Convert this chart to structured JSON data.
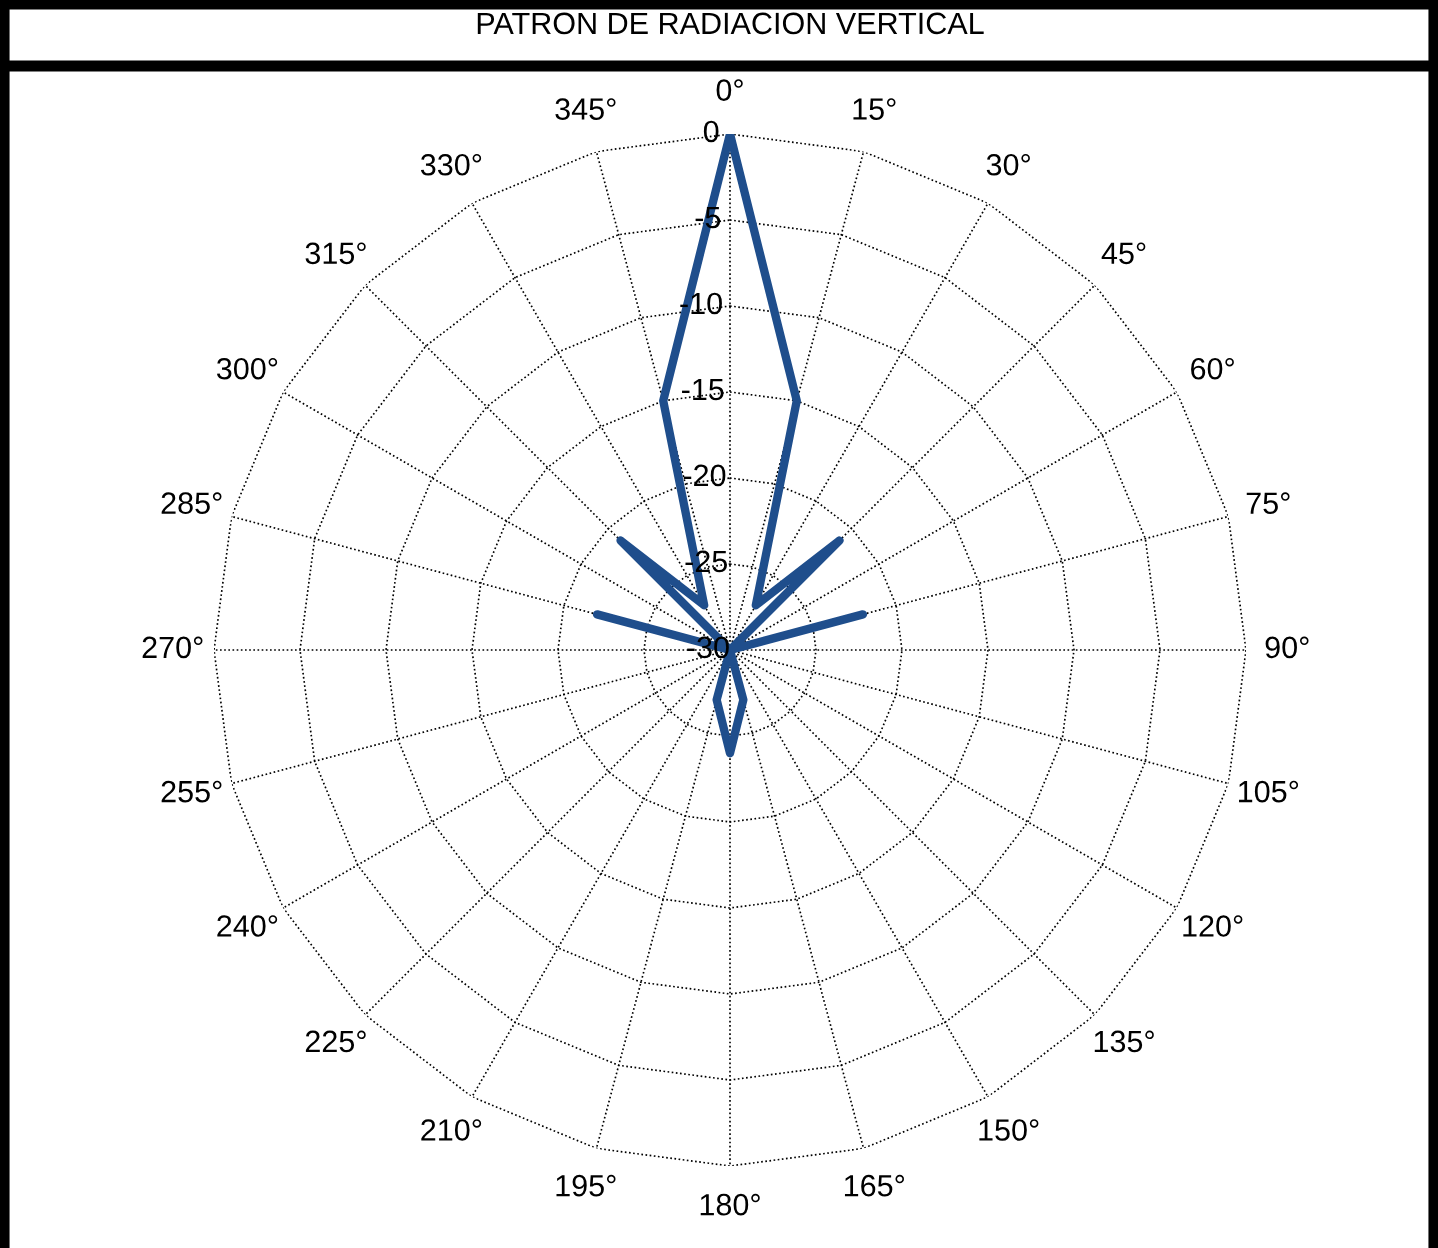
{
  "chart_data": {
    "type": "radar",
    "title": "PATRON DE RADIACION VERTICAL",
    "categories": [
      "0°",
      "15°",
      "30°",
      "45°",
      "60°",
      "75°",
      "90°",
      "105°",
      "120°",
      "135°",
      "150°",
      "165°",
      "180°",
      "195°",
      "210°",
      "225°",
      "240°",
      "255°",
      "270°",
      "285°",
      "300°",
      "315°",
      "330°",
      "345°"
    ],
    "series": [
      {
        "color": "#1f4e8c",
        "values": [
          0,
          -15,
          -27,
          -21,
          -30,
          -22,
          -30,
          -30,
          -30,
          -30,
          -30,
          -27,
          -24,
          -27,
          -30,
          -30,
          -30,
          -30,
          -30,
          -22,
          -30,
          -21,
          -27,
          -15
        ]
      }
    ],
    "ylim": [
      -30,
      0
    ],
    "yticks": [
      -30,
      -25,
      -20,
      -15,
      -10,
      -5,
      0
    ],
    "grid": true,
    "legend": false
  }
}
